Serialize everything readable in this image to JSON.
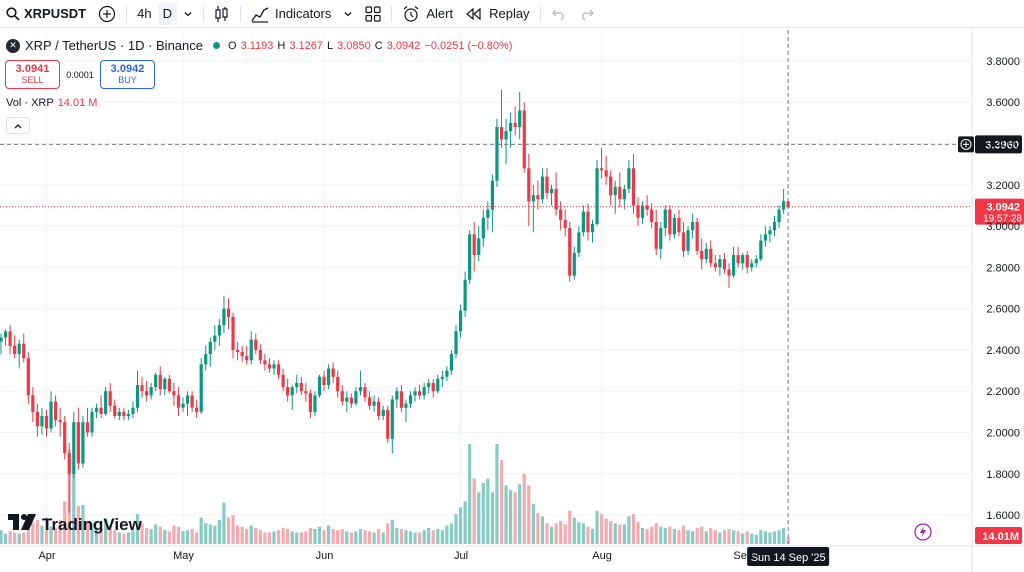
{
  "toolbar": {
    "symbol": "XRPUSDT",
    "interval": "4h",
    "interval_active": "D",
    "indicators_label": "Indicators",
    "alert_label": "Alert",
    "replay_label": "Replay",
    "icons": [
      "search-icon",
      "add-symbol-icon",
      "chevron-down-icon",
      "candles-icon",
      "indicators-icon",
      "layouts-icon",
      "alert-icon",
      "replay-icon",
      "undo-icon",
      "redo-icon"
    ]
  },
  "legend": {
    "title": "XRP / TetherUS · 1D · Binance",
    "open_label": "O",
    "open": "3.1193",
    "high_label": "H",
    "high": "3.1267",
    "low_label": "L",
    "low": "3.0850",
    "close_label": "C",
    "close": "3.0942",
    "change": "−0.0251 (−0.80%)"
  },
  "trade": {
    "sell_price": "3.0941",
    "sell_label": "SELL",
    "spread": "0.0001",
    "buy_price": "3.0942",
    "buy_label": "BUY"
  },
  "volume_legend": {
    "label": "Vol · XRP",
    "value": "14.01 M"
  },
  "branding": {
    "logo_text": "TradingView"
  },
  "colors": {
    "up": "#089981",
    "down": "#f23645",
    "up_volume": "#84ccc4",
    "down_volume": "#f7a9b0",
    "grid": "#f0f3fa",
    "axis_text": "#131722"
  },
  "chart_data": {
    "type": "candlestick",
    "symbol": "XRPUSDT",
    "timeframe": "1D",
    "ylim": [
      1.46,
      3.95
    ],
    "y_ticks": [
      "3.8000",
      "3.6000",
      "3.4000",
      "3.2000",
      "3.0000",
      "2.8000",
      "2.6000",
      "2.4000",
      "2.2000",
      "2.0000",
      "1.8000",
      "1.6000"
    ],
    "x_ticks": [
      {
        "label": "Apr",
        "index": 10
      },
      {
        "label": "May",
        "index": 40
      },
      {
        "label": "Jun",
        "index": 71
      },
      {
        "label": "Jul",
        "index": 101
      },
      {
        "label": "Aug",
        "index": 132
      },
      {
        "label": "Sep",
        "index": 163
      }
    ],
    "last_price": "3.0942",
    "countdown": "19:57:28",
    "crosshair_price": "3.3960",
    "crosshair_date": "Sun 14 Sep '25",
    "volume_label": "14.01M",
    "candles": [
      [
        2.44,
        2.48,
        2.38,
        2.46,
        1.2
      ],
      [
        2.46,
        2.5,
        2.42,
        2.49,
        0.9
      ],
      [
        2.49,
        2.52,
        2.38,
        2.42,
        1.1
      ],
      [
        2.42,
        2.47,
        2.36,
        2.38,
        1.0
      ],
      [
        2.38,
        2.45,
        2.31,
        2.43,
        0.9
      ],
      [
        2.43,
        2.48,
        2.34,
        2.36,
        1.0
      ],
      [
        2.36,
        2.39,
        2.14,
        2.18,
        2.0
      ],
      [
        2.18,
        2.22,
        2.05,
        2.1,
        1.9
      ],
      [
        2.1,
        2.14,
        1.98,
        2.03,
        2.1
      ],
      [
        2.03,
        2.12,
        1.99,
        2.08,
        1.6
      ],
      [
        2.08,
        2.11,
        1.98,
        2.02,
        2.3
      ],
      [
        2.02,
        2.2,
        2.0,
        2.15,
        1.5
      ],
      [
        2.15,
        2.18,
        2.03,
        2.06,
        1.4
      ],
      [
        2.06,
        2.12,
        1.98,
        2.05,
        2.1
      ],
      [
        2.05,
        2.08,
        1.87,
        1.9,
        3.7
      ],
      [
        1.9,
        1.95,
        1.61,
        1.8,
        8.2
      ],
      [
        1.8,
        2.1,
        1.78,
        2.05,
        6.3
      ],
      [
        2.05,
        2.12,
        1.82,
        1.85,
        3.3
      ],
      [
        1.85,
        2.08,
        1.83,
        2.05,
        3.4
      ],
      [
        2.05,
        2.12,
        1.98,
        2.0,
        2.0
      ],
      [
        2.0,
        2.12,
        1.98,
        2.1,
        1.8
      ],
      [
        2.1,
        2.14,
        2.07,
        2.12,
        1.3
      ],
      [
        2.12,
        2.18,
        2.07,
        2.09,
        1.4
      ],
      [
        2.09,
        2.22,
        2.08,
        2.2,
        2.2
      ],
      [
        2.2,
        2.24,
        2.1,
        2.13,
        1.6
      ],
      [
        2.13,
        2.16,
        2.07,
        2.08,
        1.2
      ],
      [
        2.08,
        2.12,
        2.06,
        2.1,
        1.0
      ],
      [
        2.1,
        2.12,
        2.06,
        2.08,
        0.9
      ],
      [
        2.08,
        2.11,
        2.06,
        2.09,
        1.0
      ],
      [
        2.09,
        2.15,
        2.07,
        2.12,
        1.2
      ],
      [
        2.12,
        2.3,
        2.1,
        2.23,
        2.6
      ],
      [
        2.23,
        2.27,
        2.17,
        2.2,
        1.8
      ],
      [
        2.2,
        2.25,
        2.15,
        2.18,
        1.4
      ],
      [
        2.18,
        2.24,
        2.16,
        2.22,
        1.3
      ],
      [
        2.22,
        2.29,
        2.2,
        2.28,
        1.7
      ],
      [
        2.28,
        2.32,
        2.18,
        2.21,
        1.5
      ],
      [
        2.21,
        2.27,
        2.18,
        2.26,
        1.2
      ],
      [
        2.26,
        2.28,
        2.19,
        2.2,
        1.1
      ],
      [
        2.2,
        2.24,
        2.13,
        2.18,
        1.6
      ],
      [
        2.18,
        2.22,
        2.08,
        2.12,
        1.5
      ],
      [
        2.12,
        2.17,
        2.1,
        2.14,
        1.1
      ],
      [
        2.14,
        2.2,
        2.08,
        2.18,
        1.2
      ],
      [
        2.18,
        2.2,
        2.1,
        2.12,
        1.3
      ],
      [
        2.12,
        2.16,
        2.07,
        2.1,
        1.0
      ],
      [
        2.1,
        2.36,
        2.09,
        2.33,
        2.3
      ],
      [
        2.33,
        2.42,
        2.3,
        2.38,
        1.8
      ],
      [
        2.38,
        2.46,
        2.32,
        2.44,
        1.7
      ],
      [
        2.44,
        2.52,
        2.4,
        2.47,
        1.6
      ],
      [
        2.47,
        2.55,
        2.42,
        2.52,
        2.1
      ],
      [
        2.52,
        2.66,
        2.48,
        2.6,
        3.6
      ],
      [
        2.6,
        2.65,
        2.5,
        2.56,
        2.3
      ],
      [
        2.56,
        2.58,
        2.36,
        2.4,
        2.5
      ],
      [
        2.4,
        2.44,
        2.35,
        2.39,
        1.6
      ],
      [
        2.39,
        2.42,
        2.34,
        2.37,
        1.5
      ],
      [
        2.37,
        2.42,
        2.33,
        2.35,
        1.3
      ],
      [
        2.35,
        2.49,
        2.33,
        2.45,
        1.6
      ],
      [
        2.45,
        2.48,
        2.38,
        2.4,
        1.4
      ],
      [
        2.4,
        2.43,
        2.33,
        2.35,
        1.2
      ],
      [
        2.35,
        2.38,
        2.3,
        2.33,
        1.0
      ],
      [
        2.33,
        2.36,
        2.29,
        2.31,
        1.0
      ],
      [
        2.31,
        2.35,
        2.28,
        2.33,
        1.1
      ],
      [
        2.33,
        2.35,
        2.26,
        2.28,
        1.2
      ],
      [
        2.28,
        2.31,
        2.2,
        2.22,
        1.4
      ],
      [
        2.22,
        2.26,
        2.15,
        2.18,
        1.3
      ],
      [
        2.18,
        2.23,
        2.11,
        2.22,
        1.1
      ],
      [
        2.22,
        2.28,
        2.19,
        2.24,
        1.0
      ],
      [
        2.24,
        2.27,
        2.18,
        2.2,
        1.0
      ],
      [
        2.2,
        2.24,
        2.15,
        2.19,
        1.1
      ],
      [
        2.19,
        2.21,
        2.07,
        2.1,
        1.4
      ],
      [
        2.1,
        2.2,
        2.08,
        2.18,
        1.3
      ],
      [
        2.18,
        2.28,
        2.17,
        2.27,
        1.5
      ],
      [
        2.27,
        2.3,
        2.2,
        2.23,
        1.2
      ],
      [
        2.23,
        2.33,
        2.21,
        2.31,
        1.6
      ],
      [
        2.31,
        2.34,
        2.24,
        2.27,
        1.3
      ],
      [
        2.27,
        2.3,
        2.17,
        2.2,
        1.2
      ],
      [
        2.2,
        2.23,
        2.13,
        2.15,
        1.3
      ],
      [
        2.15,
        2.2,
        2.1,
        2.17,
        1.1
      ],
      [
        2.17,
        2.19,
        2.12,
        2.14,
        1.0
      ],
      [
        2.14,
        2.22,
        2.13,
        2.2,
        1.1
      ],
      [
        2.2,
        2.3,
        2.18,
        2.22,
        1.3
      ],
      [
        2.22,
        2.24,
        2.15,
        2.17,
        1.2
      ],
      [
        2.17,
        2.2,
        2.11,
        2.13,
        1.1
      ],
      [
        2.13,
        2.18,
        2.1,
        2.15,
        1.0
      ],
      [
        2.15,
        2.17,
        2.06,
        2.08,
        1.3
      ],
      [
        2.08,
        2.13,
        2.06,
        2.11,
        1.0
      ],
      [
        2.11,
        2.13,
        1.95,
        1.97,
        1.8
      ],
      [
        1.97,
        2.18,
        1.9,
        2.16,
        2.1
      ],
      [
        2.16,
        2.22,
        2.12,
        2.2,
        1.4
      ],
      [
        2.2,
        2.23,
        2.1,
        2.12,
        1.3
      ],
      [
        2.12,
        2.16,
        2.05,
        2.14,
        1.2
      ],
      [
        2.14,
        2.2,
        2.12,
        2.18,
        1.1
      ],
      [
        2.18,
        2.22,
        2.15,
        2.2,
        1.0
      ],
      [
        2.2,
        2.23,
        2.16,
        2.18,
        1.0
      ],
      [
        2.18,
        2.24,
        2.16,
        2.22,
        1.2
      ],
      [
        2.22,
        2.26,
        2.19,
        2.24,
        1.4
      ],
      [
        2.24,
        2.26,
        2.17,
        2.2,
        1.2
      ],
      [
        2.2,
        2.28,
        2.19,
        2.26,
        1.3
      ],
      [
        2.26,
        2.3,
        2.22,
        2.27,
        1.2
      ],
      [
        2.27,
        2.32,
        2.25,
        2.3,
        1.6
      ],
      [
        2.3,
        2.4,
        2.28,
        2.38,
        1.8
      ],
      [
        2.38,
        2.52,
        2.36,
        2.49,
        2.6
      ],
      [
        2.49,
        2.62,
        2.46,
        2.59,
        3.2
      ],
      [
        2.59,
        2.78,
        2.56,
        2.74,
        3.7
      ],
      [
        2.74,
        2.98,
        2.72,
        2.96,
        8.7
      ],
      [
        2.96,
        3.02,
        2.78,
        2.86,
        5.7
      ],
      [
        2.86,
        3.0,
        2.83,
        2.94,
        4.5
      ],
      [
        2.94,
        3.08,
        2.9,
        3.04,
        5.3
      ],
      [
        3.04,
        3.12,
        2.98,
        3.08,
        5.7
      ],
      [
        3.08,
        3.25,
        2.97,
        3.22,
        4.5
      ],
      [
        3.22,
        3.52,
        3.19,
        3.48,
        8.7
      ],
      [
        3.48,
        3.66,
        3.38,
        3.42,
        7.3
      ],
      [
        3.42,
        3.52,
        3.3,
        3.46,
        5.1
      ],
      [
        3.46,
        3.55,
        3.38,
        3.5,
        4.7
      ],
      [
        3.5,
        3.58,
        3.44,
        3.48,
        4.5
      ],
      [
        3.48,
        3.65,
        3.42,
        3.56,
        5.2
      ],
      [
        3.56,
        3.6,
        3.26,
        3.28,
        6.1
      ],
      [
        3.28,
        3.35,
        3.0,
        3.12,
        5.1
      ],
      [
        3.12,
        3.2,
        2.97,
        3.15,
        3.5
      ],
      [
        3.15,
        3.22,
        3.08,
        3.13,
        2.7
      ],
      [
        3.13,
        3.28,
        3.11,
        3.24,
        2.4
      ],
      [
        3.24,
        3.28,
        3.13,
        3.16,
        1.8
      ],
      [
        3.16,
        3.2,
        3.1,
        3.18,
        1.5
      ],
      [
        3.18,
        3.26,
        3.05,
        3.08,
        1.8
      ],
      [
        3.08,
        3.12,
        2.98,
        3.03,
        2.0
      ],
      [
        3.03,
        3.08,
        2.95,
        2.99,
        1.7
      ],
      [
        2.99,
        3.02,
        2.73,
        2.76,
        2.9
      ],
      [
        2.76,
        2.9,
        2.74,
        2.87,
        2.3
      ],
      [
        2.87,
        3.0,
        2.85,
        2.97,
        1.9
      ],
      [
        2.97,
        3.1,
        2.95,
        3.07,
        1.8
      ],
      [
        3.07,
        3.11,
        2.93,
        2.97,
        1.5
      ],
      [
        2.97,
        3.03,
        2.92,
        3.01,
        1.3
      ],
      [
        3.01,
        3.32,
        3.0,
        3.28,
        2.9
      ],
      [
        3.28,
        3.38,
        3.23,
        3.27,
        2.6
      ],
      [
        3.27,
        3.34,
        3.2,
        3.24,
        2.2
      ],
      [
        3.24,
        3.27,
        3.1,
        3.15,
        2.0
      ],
      [
        3.15,
        3.22,
        3.06,
        3.19,
        1.8
      ],
      [
        3.19,
        3.26,
        3.09,
        3.13,
        1.7
      ],
      [
        3.13,
        3.2,
        3.08,
        3.18,
        1.7
      ],
      [
        3.18,
        3.32,
        3.16,
        3.28,
        2.4
      ],
      [
        3.28,
        3.35,
        3.06,
        3.1,
        2.6
      ],
      [
        3.1,
        3.14,
        3.0,
        3.04,
        1.9
      ],
      [
        3.04,
        3.12,
        3.01,
        3.1,
        1.4
      ],
      [
        3.1,
        3.15,
        3.05,
        3.08,
        1.3
      ],
      [
        3.08,
        3.11,
        2.99,
        3.02,
        1.5
      ],
      [
        3.02,
        3.08,
        2.86,
        2.89,
        1.8
      ],
      [
        2.89,
        3.02,
        2.84,
        2.99,
        1.5
      ],
      [
        2.99,
        3.1,
        2.95,
        3.08,
        1.4
      ],
      [
        3.08,
        3.1,
        2.93,
        2.96,
        1.5
      ],
      [
        2.96,
        3.06,
        2.94,
        3.04,
        1.3
      ],
      [
        3.04,
        3.08,
        2.95,
        2.97,
        1.2
      ],
      [
        2.97,
        3.02,
        2.85,
        2.88,
        1.6
      ],
      [
        2.88,
        3.0,
        2.86,
        2.98,
        1.2
      ],
      [
        2.98,
        3.06,
        2.94,
        3.02,
        1.1
      ],
      [
        3.02,
        3.04,
        2.86,
        2.88,
        1.4
      ],
      [
        2.88,
        2.94,
        2.79,
        2.84,
        1.5
      ],
      [
        2.84,
        2.92,
        2.82,
        2.89,
        1.1
      ],
      [
        2.89,
        2.93,
        2.8,
        2.82,
        1.4
      ],
      [
        2.82,
        2.86,
        2.78,
        2.8,
        1.2
      ],
      [
        2.8,
        2.86,
        2.76,
        2.84,
        1.0
      ],
      [
        2.84,
        2.87,
        2.77,
        2.79,
        1.2
      ],
      [
        2.79,
        2.82,
        2.7,
        2.76,
        1.3
      ],
      [
        2.76,
        2.9,
        2.75,
        2.86,
        1.2
      ],
      [
        2.86,
        2.9,
        2.8,
        2.82,
        1.1
      ],
      [
        2.82,
        2.87,
        2.79,
        2.86,
        0.9
      ],
      [
        2.86,
        2.88,
        2.77,
        2.8,
        1.1
      ],
      [
        2.8,
        2.84,
        2.78,
        2.82,
        0.9
      ],
      [
        2.82,
        2.86,
        2.8,
        2.84,
        0.8
      ],
      [
        2.84,
        2.96,
        2.83,
        2.93,
        1.2
      ],
      [
        2.93,
        3.0,
        2.9,
        2.96,
        1.1
      ],
      [
        2.96,
        3.0,
        2.92,
        2.98,
        1.0
      ],
      [
        2.98,
        3.05,
        2.95,
        3.02,
        1.1
      ],
      [
        3.02,
        3.1,
        2.99,
        3.08,
        1.2
      ],
      [
        3.08,
        3.18,
        3.06,
        3.12,
        1.4
      ],
      [
        3.12,
        3.13,
        3.09,
        3.09,
        0.6
      ]
    ]
  }
}
